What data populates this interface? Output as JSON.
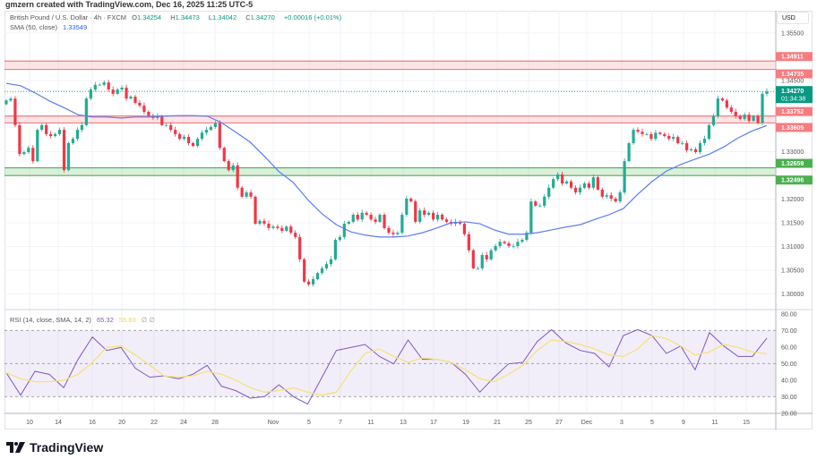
{
  "credit": "gmzern created with TradingView.com, Dec 16, 2025 11:25 UTC-5",
  "legend": {
    "symbol": "British Pound / U.S. Dollar · 4h · FXCM",
    "open_label": "O",
    "open": "1.34254",
    "high_label": "H",
    "high": "1.34473",
    "low_label": "L",
    "low": "1.34042",
    "close_label": "C",
    "close": "1.34270",
    "change": "+0.00016 (+0.01%)",
    "sma_label": "SMA (50, close)",
    "sma_value": "1.33549",
    "rsi_label": "RSI (14, close, SMA, 14, 2)",
    "rsi_value": "65.32",
    "rsi_sma_value": "55.83",
    "rsi_extra": "∅ ∅"
  },
  "currency": "USD",
  "current_price": {
    "value": "1.34270",
    "countdown": "01:34:38"
  },
  "colors": {
    "up": "#22ab94",
    "down": "#f23645",
    "sma": "#5b7cf6",
    "rsi": "#7e57c2",
    "rsi_sma": "#f5e27a",
    "resistance": "#f77c80",
    "support": "#4caf50",
    "current": "#089981"
  },
  "logo": {
    "text": "TradingView",
    "icon": "tradingview-logo-icon"
  },
  "chart_data": [
    {
      "type": "candlestick",
      "title": "British Pound / U.S. Dollar · 4h · FXCM",
      "y_axis": {
        "ticks": [
          "1.35500",
          "1.34500",
          "1.33000",
          "1.32000",
          "1.31500",
          "1.31000",
          "1.30500",
          "1.30000"
        ],
        "range": [
          1.2975,
          1.3598
        ],
        "unit": "USD"
      },
      "x_ticks": [
        "10",
        "14",
        "16",
        "20",
        "22",
        "24",
        "28",
        "Nov",
        "5",
        "7",
        "11",
        "13",
        "17",
        "19",
        "21",
        "25",
        "27",
        "Dec",
        "3",
        "5",
        "9",
        "11",
        "15"
      ],
      "grid": true,
      "open_first": 1.34,
      "close": [
        1.3408,
        1.3412,
        1.3356,
        1.3295,
        1.3299,
        1.3308,
        1.328,
        1.3346,
        1.3356,
        1.3337,
        1.3333,
        1.3337,
        1.3346,
        1.3261,
        1.3318,
        1.3327,
        1.3346,
        1.3356,
        1.3412,
        1.3431,
        1.3441,
        1.3441,
        1.3446,
        1.3431,
        1.3422,
        1.3431,
        1.3435,
        1.3412,
        1.3416,
        1.3403,
        1.3397,
        1.3384,
        1.3375,
        1.3371,
        1.3375,
        1.3356,
        1.3356,
        1.3346,
        1.3337,
        1.3327,
        1.3331,
        1.3318,
        1.3312,
        1.3327,
        1.334,
        1.3346,
        1.3352,
        1.336,
        1.3308,
        1.328,
        1.3261,
        1.3271,
        1.3224,
        1.3205,
        1.3214,
        1.3205,
        1.3148,
        1.3154,
        1.3148,
        1.3139,
        1.3142,
        1.3139,
        1.3133,
        1.3142,
        1.3129,
        1.312,
        1.3073,
        1.3026,
        1.302,
        1.3031,
        1.3044,
        1.3054,
        1.3063,
        1.3073,
        1.3114,
        1.312,
        1.3148,
        1.3152,
        1.3167,
        1.3157,
        1.3171,
        1.3167,
        1.3157,
        1.3152,
        1.3167,
        1.3139,
        1.3129,
        1.3126,
        1.3129,
        1.3167,
        1.3201,
        1.3195,
        1.3152,
        1.3176,
        1.3167,
        1.3171,
        1.3157,
        1.3167,
        1.3157,
        1.3152,
        1.3148,
        1.3152,
        1.3148,
        1.3126,
        1.3092,
        1.3054,
        1.3054,
        1.3082,
        1.3073,
        1.3092,
        1.3101,
        1.311,
        1.3107,
        1.3101,
        1.3101,
        1.311,
        1.3114,
        1.3129,
        1.3195,
        1.3186,
        1.3186,
        1.3205,
        1.3224,
        1.3242,
        1.3252,
        1.3233,
        1.3237,
        1.3224,
        1.3214,
        1.3224,
        1.3233,
        1.3224,
        1.3246,
        1.322,
        1.3205,
        1.3208,
        1.3201,
        1.3195,
        1.3214,
        1.328,
        1.3318,
        1.3346,
        1.3342,
        1.3337,
        1.3337,
        1.3327,
        1.334,
        1.3337,
        1.3333,
        1.3327,
        1.3331,
        1.3318,
        1.3318,
        1.3303,
        1.3305,
        1.3299,
        1.3318,
        1.3327,
        1.3356,
        1.3375,
        1.3412,
        1.3408,
        1.3393,
        1.3384,
        1.3375,
        1.3369,
        1.3378,
        1.3365,
        1.3375,
        1.3361,
        1.3422,
        1.3427
      ],
      "sma50": [
        1.3444,
        1.3439,
        1.3424,
        1.3407,
        1.3393,
        1.3378,
        1.3373,
        1.3373,
        1.3371,
        1.3373,
        1.3373,
        1.3375,
        1.3376,
        1.3376,
        1.3375,
        1.3361,
        1.3341,
        1.332,
        1.329,
        1.3258,
        1.3235,
        1.3199,
        1.3169,
        1.3146,
        1.3131,
        1.3124,
        1.312,
        1.312,
        1.3122,
        1.3129,
        1.3139,
        1.315,
        1.3152,
        1.3148,
        1.3135,
        1.3126,
        1.3126,
        1.3129,
        1.3135,
        1.3141,
        1.3146,
        1.3157,
        1.3167,
        1.318,
        1.321,
        1.3237,
        1.3259,
        1.3273,
        1.3284,
        1.3295,
        1.331,
        1.3329,
        1.3344,
        1.3355
      ],
      "levels": [
        {
          "type": "resistance",
          "top": "1.34911",
          "bottom": "1.34735"
        },
        {
          "type": "resistance",
          "top": "1.33752",
          "bottom": "1.33605"
        },
        {
          "type": "support",
          "top": "1.32659",
          "bottom": "1.32496"
        }
      ]
    },
    {
      "type": "line",
      "title": "RSI (14, close, SMA, 14, 2)",
      "y_axis": {
        "ticks": [
          "80.00",
          "70.00",
          "60.00",
          "50.00",
          "40.00",
          "30.00",
          "20.00"
        ],
        "range": [
          17,
          83
        ]
      },
      "bands": {
        "upper": 70,
        "middle": 50,
        "lower": 30
      },
      "series": [
        {
          "name": "RSI",
          "values": [
            44.4,
            30.9,
            45.3,
            43.5,
            35.4,
            52.5,
            66.0,
            57.9,
            59.7,
            47.1,
            41.7,
            42.6,
            40.8,
            43.5,
            48.9,
            36.3,
            33.6,
            29.1,
            30.0,
            37.2,
            30.0,
            25.5,
            41.7,
            57.9,
            59.7,
            61.5,
            54.3,
            49.8,
            64.2,
            52.5,
            52.5,
            50.7,
            43.5,
            32.7,
            41.7,
            49.8,
            50.7,
            63.3,
            70.5,
            62.4,
            57.9,
            56.1,
            48.0,
            66.9,
            70.5,
            66.9,
            56.1,
            60.6,
            46.2,
            68.7,
            60.6,
            54.3,
            54.3,
            65.32
          ]
        },
        {
          "name": "SMA",
          "values": [
            44.4,
            40.8,
            39.0,
            39.0,
            39.9,
            43.5,
            50.7,
            59.7,
            60.6,
            55.2,
            48.9,
            42.6,
            41.7,
            42.6,
            45.3,
            43.5,
            39.9,
            35.4,
            32.7,
            33.6,
            35.4,
            32.7,
            30.9,
            32.7,
            45.3,
            56.1,
            58.8,
            54.3,
            50.7,
            53.4,
            52.5,
            50.7,
            46.2,
            40.8,
            39.0,
            43.5,
            48.9,
            57.9,
            64.2,
            63.3,
            61.5,
            58.8,
            55.2,
            54.3,
            58.8,
            66.9,
            65.1,
            60.6,
            55.2,
            57.0,
            61.5,
            59.7,
            57.0,
            55.83
          ]
        }
      ]
    }
  ]
}
